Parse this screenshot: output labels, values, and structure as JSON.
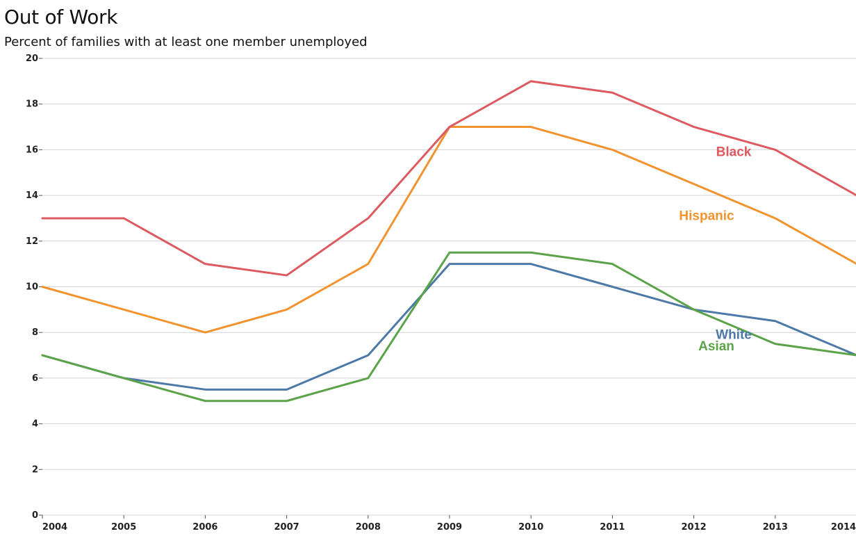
{
  "chart_data": {
    "type": "line",
    "title": "Out of Work",
    "subtitle": "Percent of families with at least one member unemployed",
    "xlabel": "",
    "ylabel": "",
    "x": [
      "2004",
      "2005",
      "2006",
      "2007",
      "2008",
      "2009",
      "2010",
      "2011",
      "2012",
      "2013",
      "2014"
    ],
    "ylim": [
      0,
      20
    ],
    "yticks": [
      "0",
      "2",
      "4",
      "6",
      "8",
      "10",
      "12",
      "14",
      "16",
      "18",
      "20"
    ],
    "grid": true,
    "legend": "inline labels",
    "series": [
      {
        "name": "Black",
        "color": "#dc5a60",
        "values": [
          13,
          13,
          11,
          10.5,
          13,
          17,
          19,
          18.5,
          17,
          16,
          14
        ]
      },
      {
        "name": "Hispanic",
        "color": "#f2932e",
        "values": [
          10,
          9,
          8,
          9,
          11,
          17,
          17,
          16,
          14.5,
          13,
          11
        ]
      },
      {
        "name": "White",
        "color": "#4d79a8",
        "values": [
          7,
          6,
          5.5,
          5.5,
          7,
          11,
          11,
          10,
          9,
          8.5,
          7
        ]
      },
      {
        "name": "Asian",
        "color": "#5ba349",
        "values": [
          7,
          6,
          5,
          5,
          6,
          11.5,
          11.5,
          11,
          9,
          7.5,
          7
        ]
      }
    ]
  }
}
